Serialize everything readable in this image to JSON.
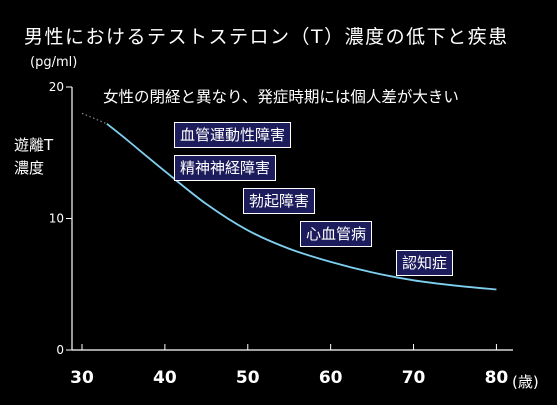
{
  "title": "男性におけるテストステロン（T）濃度の低下と疾患",
  "unit": "(pg/ml)",
  "ylabel_line1": "遊離T",
  "ylabel_line2": "濃度",
  "subtitle": "女性の閉経と異なり、発症時期には個人差が大きい",
  "xunit": "(歳)",
  "colors": {
    "background": "#000000",
    "curve": "#7fd0f0",
    "box_fill": "#1c1c5c",
    "box_border": "#ffffff"
  },
  "annotations": [
    "血管運動性障害",
    "精神神経障害",
    "勃起障害",
    "心血管病",
    "認知症"
  ],
  "chart_data": {
    "type": "line",
    "title": "男性におけるテストステロン（T）濃度の低下と疾患",
    "xlabel": "(歳)",
    "ylabel": "遊離T 濃度 (pg/ml)",
    "xlim": [
      30,
      82
    ],
    "ylim": [
      0,
      20
    ],
    "xticks": [
      30,
      40,
      50,
      60,
      70,
      80
    ],
    "yticks": [
      0,
      10,
      20
    ],
    "grid": false,
    "series": [
      {
        "x": [
          33,
          35,
          40,
          45,
          50,
          55,
          60,
          65,
          70,
          75,
          80
        ],
        "y": [
          17.2,
          16.2,
          13.6,
          11.1,
          9.1,
          7.7,
          6.7,
          5.9,
          5.3,
          4.9,
          4.6
        ]
      }
    ],
    "dotted_extension": {
      "x": [
        30,
        33
      ],
      "y": [
        18.0,
        17.2
      ]
    }
  }
}
